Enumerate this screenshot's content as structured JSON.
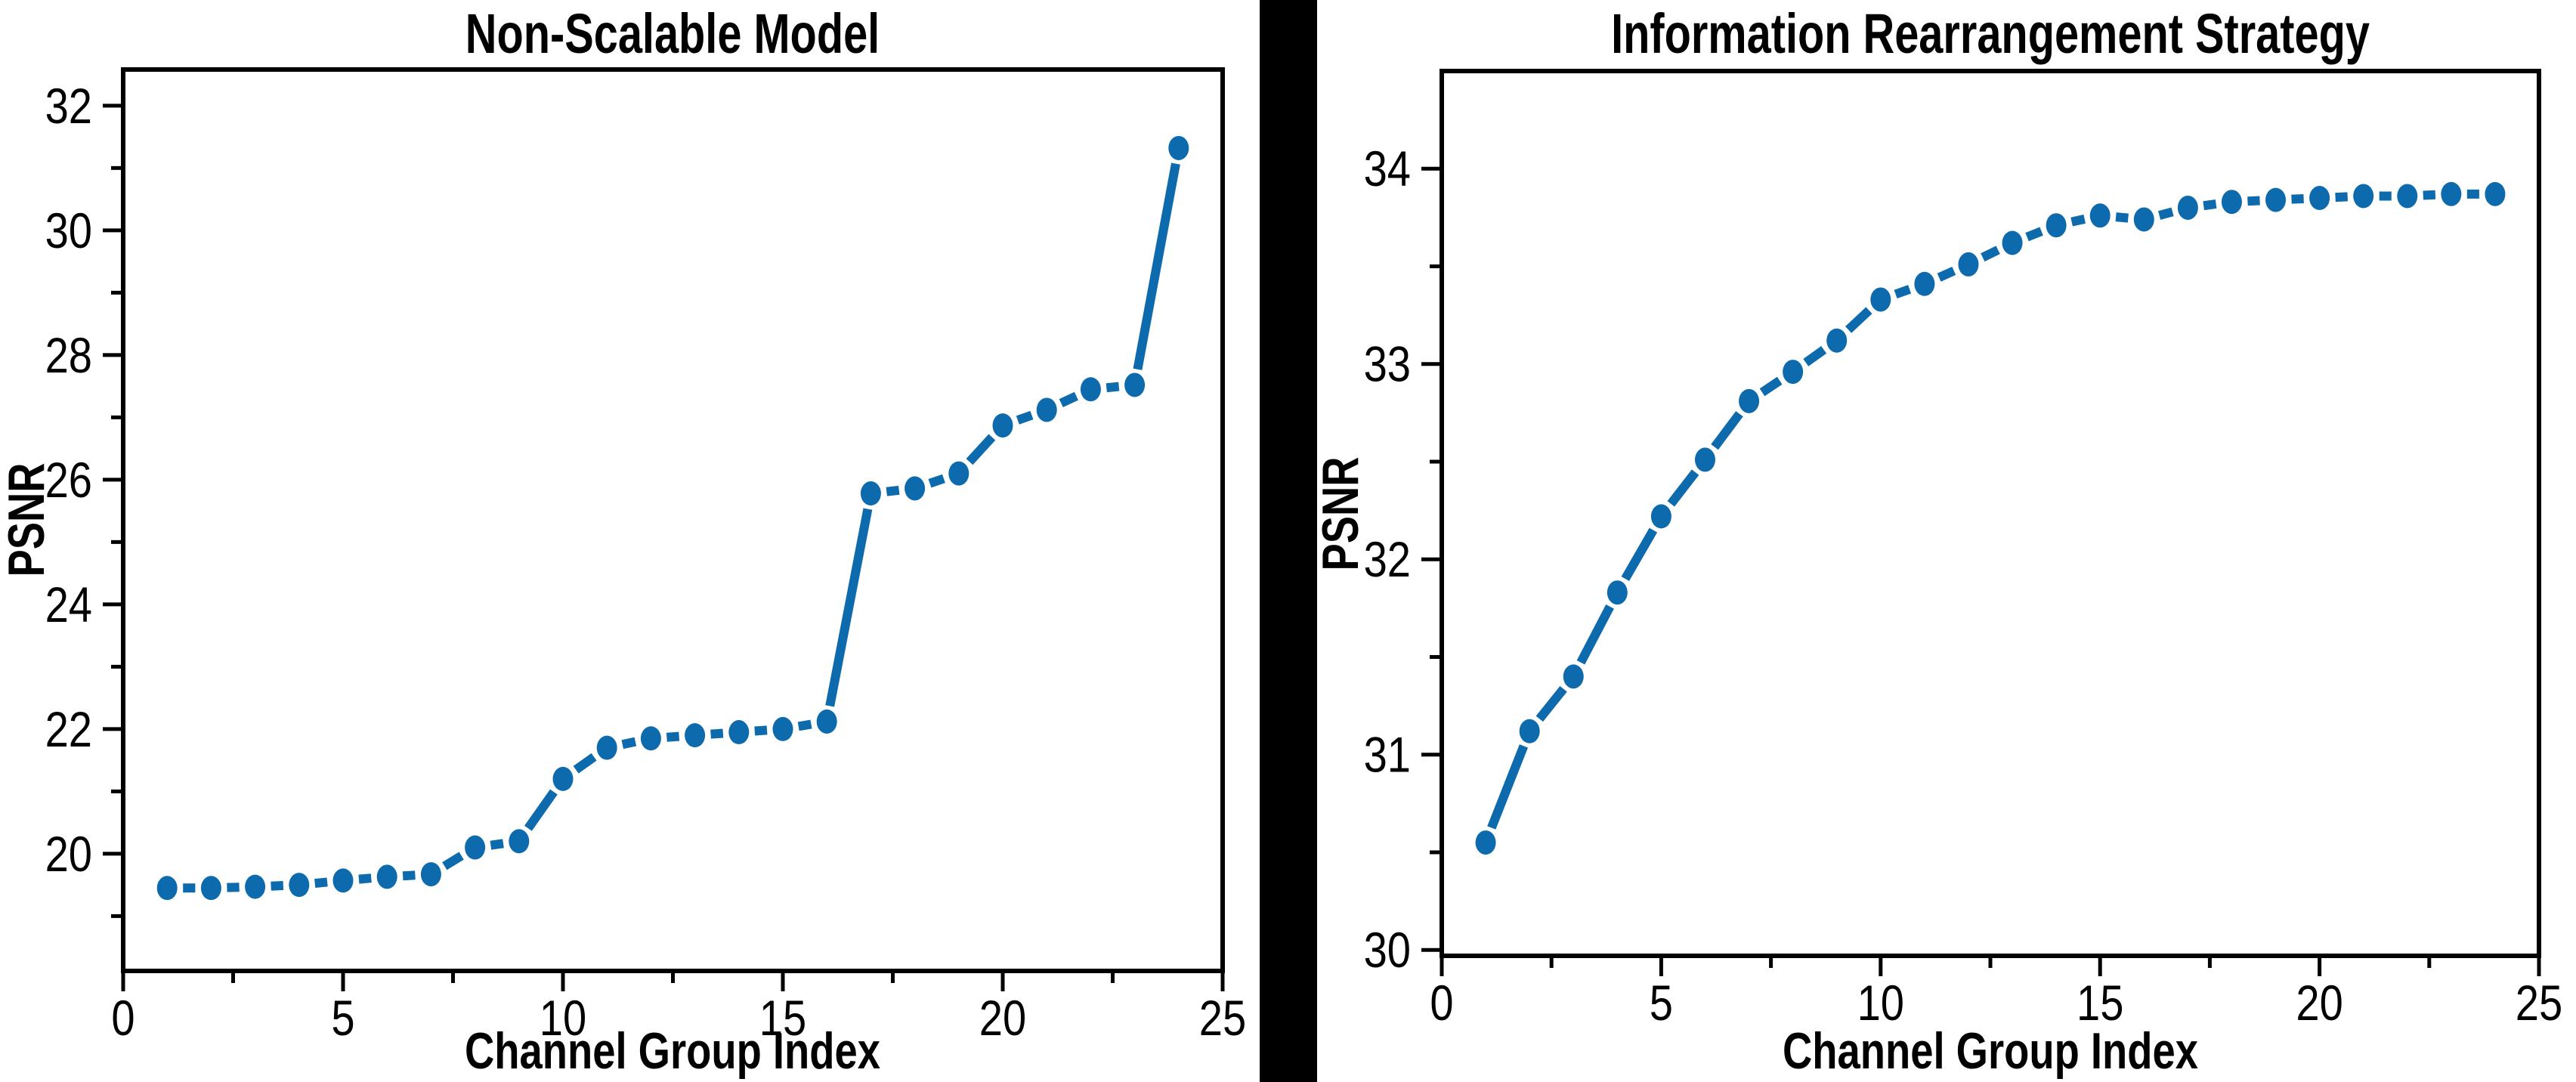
{
  "page": {
    "background_color": "#ffffff",
    "divider_color": "#000000",
    "axis_color": "#000000",
    "tick_label_color": "#000000"
  },
  "chart_data": [
    {
      "type": "line",
      "title": "Non-Scalable Model",
      "xlabel": "Channel Group Index",
      "ylabel": "PSNR",
      "line_color": "#0d6aad",
      "marker": "ellipse",
      "grid": false,
      "legend": null,
      "xlim": [
        0,
        25
      ],
      "ylim": [
        18.12,
        32.58
      ],
      "xticks_major": [
        0,
        5,
        10,
        15,
        20,
        25
      ],
      "xticks_minor": [
        2.5,
        7.5,
        12.5,
        17.5,
        22.5
      ],
      "yticks_major": [
        20,
        22,
        24,
        26,
        28,
        30,
        32
      ],
      "yticks_minor": [
        19,
        21,
        23,
        25,
        27,
        29,
        31
      ],
      "x": [
        1,
        2,
        3,
        4,
        5,
        6,
        7,
        8,
        9,
        10,
        11,
        12,
        13,
        14,
        15,
        16,
        17,
        18,
        19,
        20,
        21,
        22,
        23,
        24
      ],
      "y": [
        19.45,
        19.45,
        19.47,
        19.5,
        19.57,
        19.63,
        19.67,
        20.1,
        20.2,
        21.2,
        21.7,
        21.85,
        21.9,
        21.95,
        22.0,
        22.12,
        25.78,
        25.86,
        26.1,
        26.87,
        27.12,
        27.45,
        27.52,
        31.32
      ]
    },
    {
      "type": "line",
      "title": "Information Rearrangement Strategy",
      "xlabel": "Channel Group Index",
      "ylabel": "PSNR",
      "line_color": "#0d6aad",
      "marker": "ellipse",
      "grid": false,
      "legend": null,
      "xlim": [
        0,
        25
      ],
      "ylim": [
        29.97,
        34.5
      ],
      "xticks_major": [
        0,
        5,
        10,
        15,
        20,
        25
      ],
      "xticks_minor": [
        2.5,
        7.5,
        12.5,
        17.5,
        22.5
      ],
      "yticks_major": [
        30,
        31,
        32,
        33,
        34
      ],
      "yticks_minor": [
        30.5,
        31.5,
        32.5,
        33.5
      ],
      "x": [
        1,
        2,
        3,
        4,
        5,
        6,
        7,
        8,
        9,
        10,
        11,
        12,
        13,
        14,
        15,
        16,
        17,
        18,
        19,
        20,
        21,
        22,
        23,
        24
      ],
      "y": [
        30.55,
        31.12,
        31.4,
        31.83,
        32.22,
        32.51,
        32.81,
        32.96,
        33.12,
        33.33,
        33.41,
        33.51,
        33.62,
        33.71,
        33.76,
        33.74,
        33.8,
        33.83,
        33.84,
        33.85,
        33.86,
        33.86,
        33.87,
        33.87
      ]
    }
  ]
}
